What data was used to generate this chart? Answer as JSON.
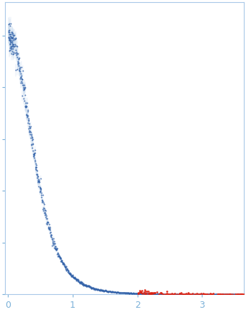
{
  "title": "",
  "xlabel": "",
  "ylabel": "",
  "xlim": [
    -0.05,
    3.65
  ],
  "use_log_y": false,
  "background_color": "#ffffff",
  "axes_color": "#a8c8e8",
  "blue_dot_color": "#3060a8",
  "red_dot_color": "#dd2010",
  "error_bar_color": "#b8d0ea",
  "tick_color": "#7ab0d8",
  "tick_label_color": "#7ab0d8",
  "xticks": [
    0,
    1,
    2,
    3
  ],
  "dot_size_blue": 2.0,
  "dot_size_red": 4.0,
  "seed": 42,
  "n_blue": 900,
  "n_red": 130
}
